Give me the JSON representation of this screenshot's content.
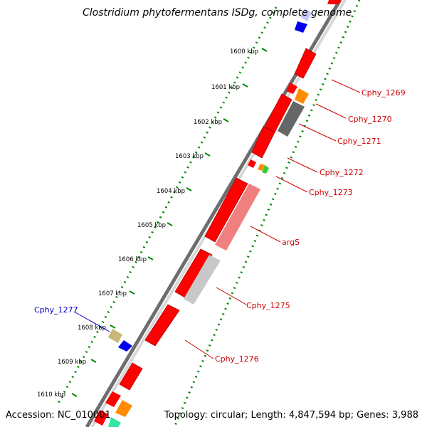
{
  "title": "Clostridium phytofermentans ISDg, complete genome",
  "footer": {
    "accession": "Accession: NC_010001",
    "summary": "Topology: circular; Length: 4,847,594 bp; Genes: 3,988"
  },
  "ruler": [
    "1600 kbp",
    "1601 kbp",
    "1602 kbp",
    "1603 kbp",
    "1604 kbp",
    "1605 kbp",
    "1606 kbp",
    "1607 kbp",
    "1608 kbp",
    "1609 kbp",
    "1610 kbp"
  ],
  "gene_labels": [
    {
      "text": "Cphy_1269",
      "color": "#cc0000"
    },
    {
      "text": "Cphy_1270",
      "color": "#cc0000"
    },
    {
      "text": "Cphy_1271",
      "color": "#cc0000"
    },
    {
      "text": "Cphy_1272",
      "color": "#cc0000"
    },
    {
      "text": "Cphy_1273",
      "color": "#cc0000"
    },
    {
      "text": "argS",
      "color": "#cc0000"
    },
    {
      "text": "Cphy_1275",
      "color": "#cc0000"
    },
    {
      "text": "Cphy_1276",
      "color": "#cc0000"
    },
    {
      "text": "Cphy_1277",
      "color": "#0000cc"
    }
  ],
  "colors": {
    "cds_red": "#ff0000",
    "orange": "#ff8c00",
    "green": "#33cc33",
    "gray_dark": "#666666",
    "gray_light": "#c8c8c8",
    "pink": "#f08080",
    "blue": "#0000ee",
    "lavender": "#c8c8ff",
    "khaki": "#c8b878",
    "mint": "#33e6a0",
    "dotted_ring": "#008800",
    "backbone": "#808080"
  }
}
